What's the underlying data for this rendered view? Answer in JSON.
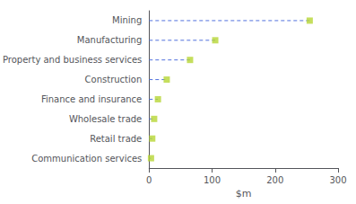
{
  "chart_data": {
    "type": "lollipop",
    "orientation": "horizontal",
    "categories": [
      "Communication services",
      "Retail trade",
      "Wholesale trade",
      "Finance and insurance",
      "Construction",
      "Property and business services",
      "Manufacturing",
      "Mining"
    ],
    "values": [
      3,
      5,
      8,
      14,
      28,
      65,
      105,
      255
    ],
    "xlabel": "$m",
    "xlim": [
      0,
      300
    ],
    "xticks": [
      0,
      100,
      200,
      300
    ],
    "grid": false,
    "line_style": "dashed",
    "marker": "square"
  }
}
